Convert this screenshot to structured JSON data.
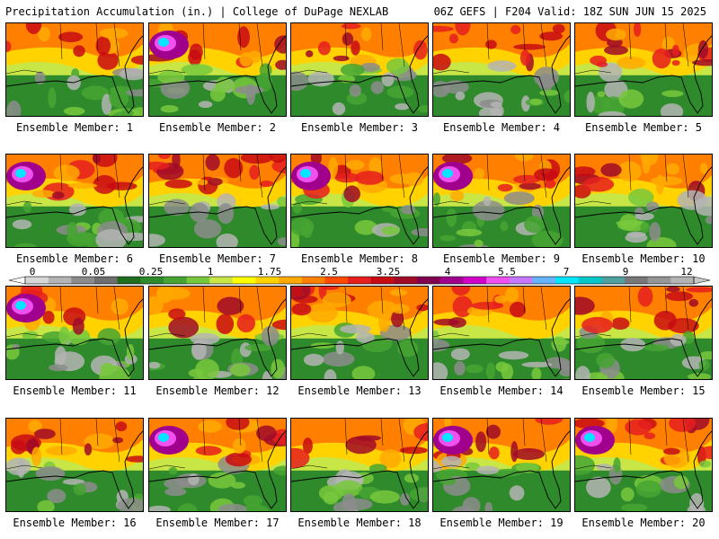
{
  "header": {
    "left": "Precipitation Accumulation (in.) | College of DuPage NEXLAB",
    "right": "06Z GEFS | F204 Valid: 18Z SUN JUN 15 2025"
  },
  "members": [
    {
      "label": "Ensemble Member: 1"
    },
    {
      "label": "Ensemble Member: 2"
    },
    {
      "label": "Ensemble Member: 3"
    },
    {
      "label": "Ensemble Member: 4"
    },
    {
      "label": "Ensemble Member: 5"
    },
    {
      "label": "Ensemble Member: 6"
    },
    {
      "label": "Ensemble Member: 7"
    },
    {
      "label": "Ensemble Member: 8"
    },
    {
      "label": "Ensemble Member: 9"
    },
    {
      "label": "Ensemble Member: 10"
    },
    {
      "label": "Ensemble Member: 11"
    },
    {
      "label": "Ensemble Member: 12"
    },
    {
      "label": "Ensemble Member: 13"
    },
    {
      "label": "Ensemble Member: 14"
    },
    {
      "label": "Ensemble Member: 15"
    },
    {
      "label": "Ensemble Member: 16"
    },
    {
      "label": "Ensemble Member: 17"
    },
    {
      "label": "Ensemble Member: 18"
    },
    {
      "label": "Ensemble Member: 19"
    },
    {
      "label": "Ensemble Member: 20"
    }
  ],
  "colorbar": {
    "labels": [
      "0",
      "0.05",
      "0.25",
      "1",
      "1.75",
      "2.5",
      "3.25",
      "4",
      "5.5",
      "7",
      "9",
      "12"
    ],
    "colors": [
      "#d8d8d8",
      "#b4b4b4",
      "#8c8c8c",
      "#6e6e6e",
      "#1e6e1e",
      "#2f8a2b",
      "#46a532",
      "#78c83c",
      "#c8e646",
      "#ffff00",
      "#ffd200",
      "#ffaa00",
      "#ff7f00",
      "#ff4a00",
      "#e61e1e",
      "#c80a14",
      "#a00a28",
      "#820050",
      "#a0008c",
      "#d200c8",
      "#f050f0",
      "#c878ff",
      "#64b4ff",
      "#00e6ff",
      "#00c8c8",
      "#50a0a0",
      "#787878",
      "#969696",
      "#b4b4b4"
    ]
  }
}
